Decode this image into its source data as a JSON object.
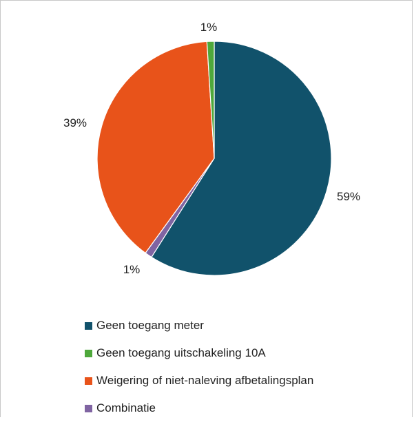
{
  "chart_data": {
    "type": "pie",
    "title": "",
    "categories": [
      "Geen toegang meter",
      "Combinatie",
      "Weigering of niet-naleving afbetalingsplan",
      "Geen toegang uitschakeling 10A"
    ],
    "values": [
      59,
      1,
      39,
      1
    ],
    "data_labels": [
      "59%",
      "1%",
      "39%",
      "1%"
    ],
    "colors": [
      "#11526b",
      "#8064a2",
      "#e8531a",
      "#4ea83b"
    ],
    "legend_position": "bottom",
    "legend": [
      {
        "label": "Geen toegang meter",
        "color": "#11526b"
      },
      {
        "label": "Geen toegang uitschakeling 10A",
        "color": "#4ea83b"
      },
      {
        "label": "Weigering of niet-naleving afbetalingsplan",
        "color": "#e8531a"
      },
      {
        "label": "Combinatie",
        "color": "#8064a2"
      }
    ]
  }
}
